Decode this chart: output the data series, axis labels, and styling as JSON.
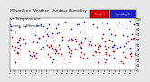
{
  "title_line1": "Milwaukee Weather  Outdoor Humidity",
  "title_line2": "vs Temperature",
  "title_line3": "Every 5 Minutes",
  "title_fontsize": 3.2,
  "background_color": "#e8e8e8",
  "plot_bg_color": "#ffffff",
  "blue_label": "Humidity %",
  "red_label": "Temp °F",
  "legend_red": "#dd0000",
  "legend_blue": "#2222cc",
  "dot_size": 1.5,
  "n_points": 300,
  "seed": 7,
  "ylim": [
    0,
    100
  ],
  "ylabel_right_ticks": [
    0,
    10,
    20,
    30,
    40,
    50,
    60,
    70,
    80,
    90,
    100
  ],
  "grid_color": "#cccccc",
  "axes_color": "#888888"
}
